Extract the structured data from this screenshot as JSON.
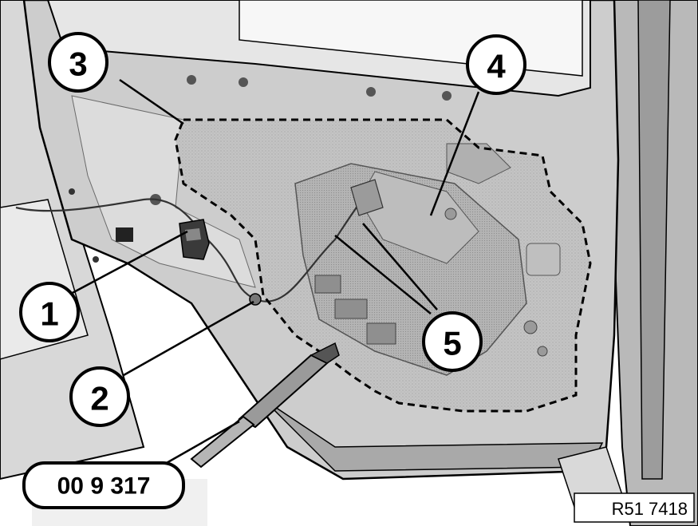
{
  "callouts": {
    "c1": "1",
    "c2": "2",
    "c3": "3",
    "c4": "4",
    "c5": "5"
  },
  "tool_number": "00 9 317",
  "figure_ref": "R51 7418",
  "colors": {
    "panel": "#c9c9c9",
    "panel_dark": "#9a9a9a",
    "membrane": "#b7b7b7",
    "outline": "#000000",
    "background": "#ffffff"
  }
}
